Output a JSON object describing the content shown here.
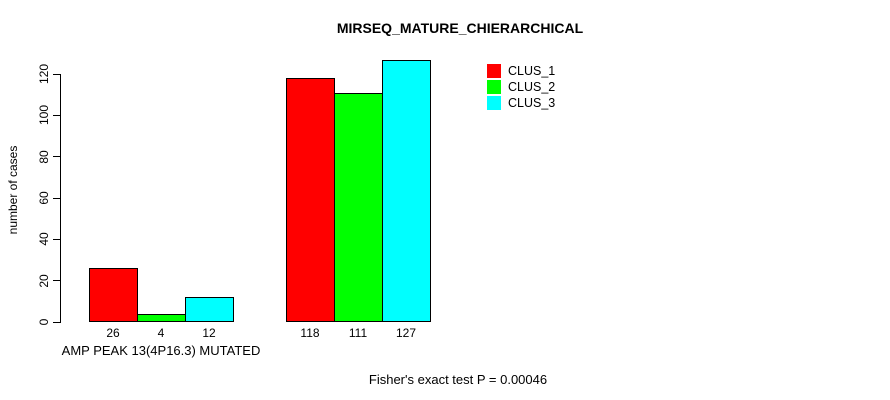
{
  "chart_data": {
    "type": "bar",
    "title": "MIRSEQ_MATURE_CHIERARCHICAL",
    "ylabel": "number of cases",
    "xlabel": "",
    "categories": [
      "AMP PEAK 13(4P16.3) MUTATED",
      ""
    ],
    "series": [
      {
        "name": "CLUS_1",
        "color": "#ff0000",
        "values": [
          26,
          118
        ]
      },
      {
        "name": "CLUS_2",
        "color": "#00ff00",
        "values": [
          4,
          111
        ]
      },
      {
        "name": "CLUS_3",
        "color": "#00ffff",
        "values": [
          12,
          127
        ]
      }
    ],
    "yticks": [
      0,
      20,
      40,
      60,
      80,
      100,
      120
    ],
    "ylim": [
      0,
      127
    ],
    "grid": false,
    "legend_position": "top-right",
    "bar_value_labels": [
      [
        26,
        4,
        12
      ],
      [
        118,
        111,
        127
      ]
    ],
    "annotation": "Fisher's exact test P = 0.00046"
  }
}
